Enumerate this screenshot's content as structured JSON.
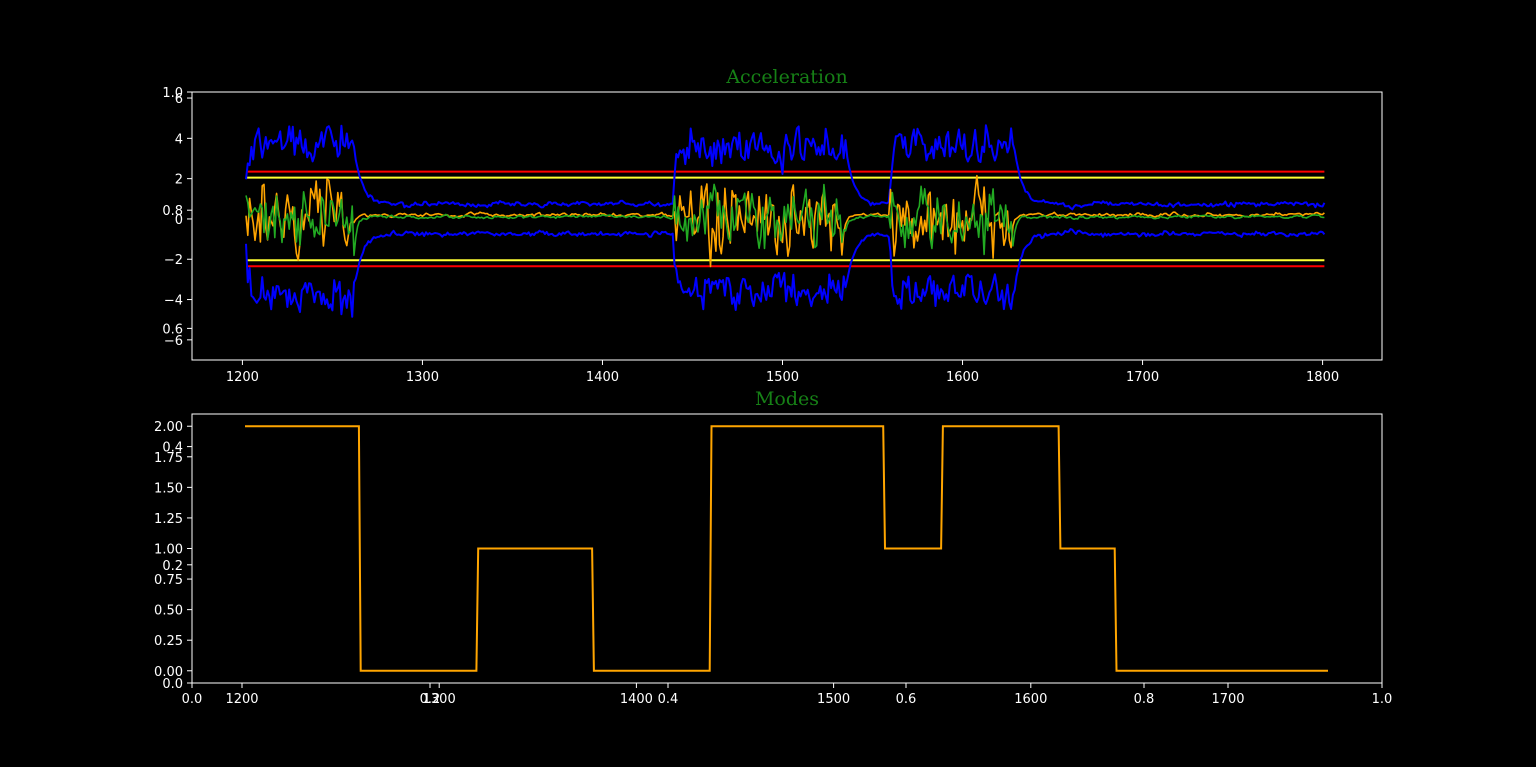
{
  "chart_data": [
    {
      "type": "line",
      "title": "Acceleration",
      "xlim": [
        1172,
        1833
      ],
      "ylim": [
        -7.0,
        6.3
      ],
      "x_ticks": [
        1200,
        1300,
        1400,
        1500,
        1600,
        1700,
        1800
      ],
      "y_ticks": [
        -6,
        -4,
        -2,
        0,
        2,
        4,
        6
      ],
      "overlay_y_ticks": [
        "1.0",
        "0.8",
        "0.6"
      ],
      "threshold_lines": [
        {
          "y": 2.35,
          "color": "#ff0000"
        },
        {
          "y": 2.05,
          "color": "#ffff33"
        },
        {
          "y": -2.05,
          "color": "#ffff33"
        },
        {
          "y": -2.35,
          "color": "#ff0000"
        }
      ],
      "x_range": [
        1202,
        1801
      ],
      "active_segments": [
        [
          1202,
          1262
        ],
        [
          1440,
          1535
        ],
        [
          1560,
          1628
        ]
      ],
      "series_colors": {
        "envelope": "#0000ff",
        "signal_a": "#ffa500",
        "signal_b": "#22aa22",
        "baseline": "#4477ff"
      },
      "grid": false
    },
    {
      "type": "line",
      "title": "Modes",
      "xlim": [
        1172,
        1833
      ],
      "ylim": [
        -0.1,
        2.1
      ],
      "x_ticks": [
        1200,
        1300,
        1400,
        1500,
        1600,
        1700
      ],
      "y_ticks": [
        "0.00",
        "0.25",
        "0.50",
        "0.75",
        "1.00",
        "1.25",
        "1.50",
        "1.75",
        "2.00"
      ],
      "overlay_y_ticks": [
        "0.0",
        "0.2",
        "0.4"
      ],
      "overlay_x_ticks": [
        "0.0",
        "0.2",
        "0.4",
        "0.6",
        "0.8",
        "1.0"
      ],
      "color": "#ffa500",
      "steps": [
        [
          1202,
          2
        ],
        [
          1265,
          2
        ],
        [
          1266,
          0
        ],
        [
          1330,
          0
        ],
        [
          1331,
          1
        ],
        [
          1394,
          1
        ],
        [
          1395,
          0
        ],
        [
          1459,
          0
        ],
        [
          1460,
          2
        ],
        [
          1555,
          2
        ],
        [
          1556,
          1
        ],
        [
          1587,
          1
        ],
        [
          1588,
          2
        ],
        [
          1652,
          2
        ],
        [
          1653,
          1
        ],
        [
          1683,
          1
        ],
        [
          1684,
          0
        ],
        [
          1801,
          0
        ]
      ],
      "grid": false
    }
  ]
}
